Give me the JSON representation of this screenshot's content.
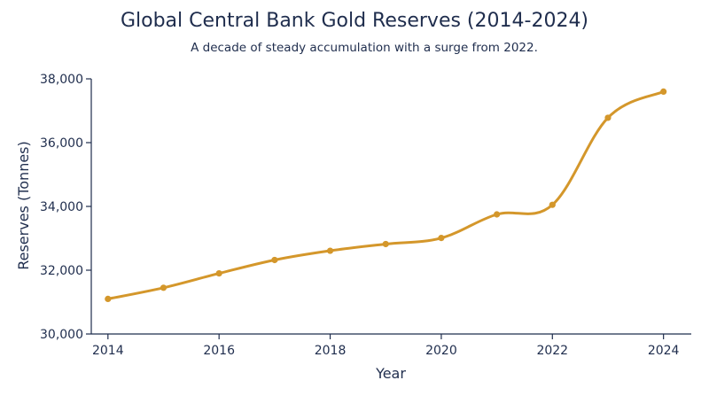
{
  "chart_data": {
    "type": "line",
    "title": "Global Central Bank Gold Reserves (2014-2024)",
    "subtitle": "A decade of steady accumulation with a surge from 2022.",
    "xlabel": "Year",
    "ylabel": "Reserves (Tonnes)",
    "x": [
      2014,
      2015,
      2016,
      2017,
      2018,
      2019,
      2020,
      2021,
      2022,
      2023,
      2024
    ],
    "series": [
      {
        "values": [
          31100,
          31450,
          31900,
          32320,
          32610,
          32820,
          33010,
          33750,
          34050,
          36780,
          37600
        ]
      }
    ],
    "xticks": [
      2014,
      2016,
      2018,
      2020,
      2022,
      2024
    ],
    "xtick_labels": [
      "2014",
      "2016",
      "2018",
      "2020",
      "2022",
      "2024"
    ],
    "yticks": [
      30000,
      32000,
      34000,
      36000,
      38000
    ],
    "ytick_labels": [
      "30,000",
      "32,000",
      "34,000",
      "36,000",
      "38,000"
    ],
    "xlim": [
      2013.7,
      2024.5
    ],
    "ylim": [
      30000,
      38000
    ],
    "grid": false,
    "colors": {
      "line": "#d4972b",
      "axis": "#1f2d4d",
      "text": "#1f2d4d"
    }
  }
}
